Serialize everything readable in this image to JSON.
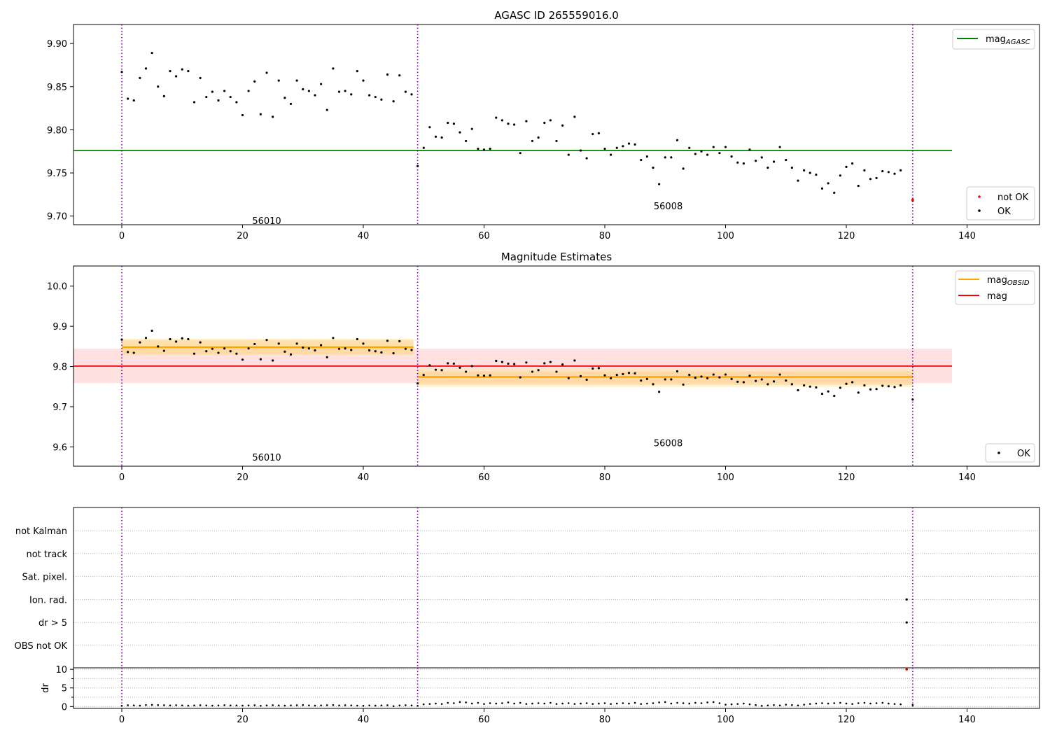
{
  "figure": {
    "suptitle": "AGASC ID 265559016.0"
  },
  "chart_data": [
    {
      "type": "scatter",
      "panel": "top",
      "title": "AGASC ID 265559016.0",
      "xlim": [
        -8,
        152
      ],
      "ylim": [
        9.69,
        9.922
      ],
      "x_ticks": [
        0,
        20,
        40,
        60,
        80,
        100,
        120,
        140
      ],
      "y_ticks": [
        9.7,
        9.75,
        9.8,
        9.85,
        9.9
      ],
      "y_tick_labels": [
        "9.70",
        "9.75",
        "9.80",
        "9.85",
        "9.90"
      ],
      "obsid_boundaries": [
        0,
        49,
        131
      ],
      "obsid_labels": [
        {
          "x": 24,
          "y": 9.695,
          "text": "56010"
        },
        {
          "x": 90.5,
          "y": 9.712,
          "text": "56008"
        }
      ],
      "hlines": [
        {
          "name": "mag_AGASC",
          "value": 9.776,
          "x_range": [
            -8,
            137.5
          ],
          "color": "#008000"
        }
      ],
      "legend_upper": [
        {
          "label": "mag",
          "sub": "AGASC",
          "color": "#008000",
          "kind": "line"
        }
      ],
      "legend_lower": [
        {
          "label": "not OK",
          "color": "#ff0000",
          "kind": "dot"
        },
        {
          "label": "OK",
          "color": "#000000",
          "kind": "dot"
        }
      ],
      "series": [
        {
          "name": "OK",
          "color": "#000000",
          "x": [
            0,
            1,
            2,
            3,
            4,
            5,
            6,
            7,
            8,
            9,
            10,
            11,
            12,
            13,
            14,
            15,
            16,
            17,
            18,
            19,
            20,
            21,
            22,
            23,
            24,
            25,
            26,
            27,
            28,
            29,
            30,
            31,
            32,
            33,
            34,
            35,
            36,
            37,
            38,
            39,
            40,
            41,
            42,
            43,
            44,
            45,
            46,
            47,
            48,
            49,
            50,
            51,
            52,
            53,
            54,
            55,
            56,
            57,
            58,
            59,
            60,
            61,
            62,
            63,
            64,
            65,
            66,
            67,
            68,
            69,
            70,
            71,
            72,
            73,
            74,
            75,
            76,
            77,
            78,
            79,
            80,
            81,
            82,
            83,
            84,
            85,
            86,
            87,
            88,
            89,
            90,
            91,
            92,
            93,
            94,
            95,
            96,
            97,
            98,
            99,
            100,
            101,
            102,
            103,
            104,
            105,
            106,
            107,
            108,
            109,
            110,
            111,
            112,
            113,
            114,
            115,
            116,
            117,
            118,
            119,
            120,
            121,
            122,
            123,
            124,
            125,
            126,
            127,
            128,
            129,
            131
          ],
          "y": [
            9.867,
            9.836,
            9.834,
            9.86,
            9.871,
            9.889,
            9.85,
            9.839,
            9.868,
            9.862,
            9.87,
            9.868,
            9.832,
            9.86,
            9.838,
            9.844,
            9.834,
            9.845,
            9.838,
            9.832,
            9.817,
            9.845,
            9.856,
            9.818,
            9.866,
            9.815,
            9.857,
            9.837,
            9.83,
            9.857,
            9.847,
            9.845,
            9.84,
            9.853,
            9.823,
            9.871,
            9.844,
            9.845,
            9.841,
            9.868,
            9.857,
            9.84,
            9.838,
            9.835,
            9.864,
            9.833,
            9.863,
            9.844,
            9.841,
            9.758,
            9.779,
            9.803,
            9.792,
            9.791,
            9.808,
            9.807,
            9.797,
            9.787,
            9.801,
            9.778,
            9.777,
            9.778,
            9.814,
            9.811,
            9.807,
            9.806,
            9.773,
            9.81,
            9.787,
            9.791,
            9.808,
            9.811,
            9.787,
            9.805,
            9.771,
            9.815,
            9.776,
            9.767,
            9.795,
            9.796,
            9.778,
            9.771,
            9.779,
            9.781,
            9.784,
            9.783,
            9.765,
            9.769,
            9.756,
            9.737,
            9.768,
            9.768,
            9.788,
            9.755,
            9.779,
            9.772,
            9.775,
            9.771,
            9.78,
            9.773,
            9.78,
            9.769,
            9.762,
            9.761,
            9.777,
            9.764,
            9.768,
            9.756,
            9.763,
            9.78,
            9.765,
            9.756,
            9.741,
            9.753,
            9.75,
            9.748,
            9.732,
            9.738,
            9.727,
            9.747,
            9.757,
            9.761,
            9.735,
            9.753,
            9.743,
            9.744,
            9.752,
            9.751,
            9.749,
            9.753,
            9.718
          ]
        },
        {
          "name": "not OK",
          "color": "#ff0000",
          "x": [
            131
          ],
          "y": [
            9.719
          ]
        }
      ]
    },
    {
      "type": "scatter",
      "panel": "middle",
      "title": "Magnitude Estimates",
      "xlim": [
        -8,
        152
      ],
      "ylim": [
        9.552,
        10.05
      ],
      "x_ticks": [
        0,
        20,
        40,
        60,
        80,
        100,
        120,
        140
      ],
      "y_ticks": [
        9.6,
        9.7,
        9.8,
        9.9,
        10.0
      ],
      "y_tick_labels": [
        "9.6",
        "9.7",
        "9.8",
        "9.9",
        "10.0"
      ],
      "obsid_boundaries": [
        0,
        49,
        131
      ],
      "obsid_labels": [
        {
          "x": 24,
          "y": 9.575,
          "text": "56010"
        },
        {
          "x": 90.5,
          "y": 9.61,
          "text": "56008"
        }
      ],
      "mag": {
        "value": 9.801,
        "band": [
          9.759,
          9.844
        ],
        "x_range": [
          -8,
          137.5
        ],
        "color": "#ff0000"
      },
      "mag_obsid": [
        {
          "obsid": "56010",
          "x_range": [
            0,
            48.3
          ],
          "value": 9.848,
          "band_inner": [
            9.83,
            9.866
          ],
          "band_outer": [
            9.827,
            9.869
          ]
        },
        {
          "obsid": "56008",
          "x_range": [
            49,
            131
          ],
          "value": 9.774,
          "band_inner": [
            9.754,
            9.788
          ],
          "band_outer": [
            9.749,
            9.795
          ]
        }
      ],
      "legend_upper": [
        {
          "label": "mag",
          "sub": "OBSID",
          "color": "#ffa500",
          "kind": "line"
        },
        {
          "label": "mag",
          "sub": "",
          "color": "#ff0000",
          "kind": "line"
        }
      ],
      "legend_lower": [
        {
          "label": "OK",
          "color": "#000000",
          "kind": "dot"
        }
      ],
      "series": [
        {
          "name": "OK",
          "color": "#000000",
          "same_as_top_panel": true
        }
      ]
    },
    {
      "type": "scatter",
      "panel": "flags",
      "title": "",
      "xlim": [
        -8,
        152
      ],
      "categories": [
        "not Kalman",
        "not track",
        "Sat. pixel.",
        "Ion. rad.",
        "dr > 5",
        "OBS not OK"
      ],
      "obsid_boundaries": [
        0,
        49,
        131
      ],
      "series": [
        {
          "name": "flagged",
          "color": "#000000",
          "points": [
            {
              "x": 130,
              "category": "Ion. rad."
            },
            {
              "x": 130,
              "category": "dr > 5"
            }
          ]
        }
      ]
    },
    {
      "type": "scatter",
      "panel": "dr",
      "title": "",
      "ylabel": "dr",
      "xlim": [
        -8,
        152
      ],
      "ylim": [
        -0.5,
        10.4
      ],
      "x_ticks": [
        0,
        20,
        40,
        60,
        80,
        100,
        120,
        140
      ],
      "y_ticks": [
        0,
        5,
        10
      ],
      "y_tick_labels": [
        "0",
        "5",
        "10"
      ],
      "obsid_boundaries": [
        0,
        49,
        131
      ],
      "series": [
        {
          "name": "OK",
          "color": "#000000",
          "x": [
            0,
            1,
            2,
            3,
            4,
            5,
            6,
            7,
            8,
            9,
            10,
            11,
            12,
            13,
            14,
            15,
            16,
            17,
            18,
            19,
            20,
            21,
            22,
            23,
            24,
            25,
            26,
            27,
            28,
            29,
            30,
            31,
            32,
            33,
            34,
            35,
            36,
            37,
            38,
            39,
            40,
            41,
            42,
            43,
            44,
            45,
            46,
            47,
            48,
            49,
            50,
            51,
            52,
            53,
            54,
            55,
            56,
            57,
            58,
            59,
            60,
            61,
            62,
            63,
            64,
            65,
            66,
            67,
            68,
            69,
            70,
            71,
            72,
            73,
            74,
            75,
            76,
            77,
            78,
            79,
            80,
            81,
            82,
            83,
            84,
            85,
            86,
            87,
            88,
            89,
            90,
            91,
            92,
            93,
            94,
            95,
            96,
            97,
            98,
            99,
            100,
            101,
            102,
            103,
            104,
            105,
            106,
            107,
            108,
            109,
            110,
            111,
            112,
            113,
            114,
            115,
            116,
            117,
            118,
            119,
            120,
            121,
            122,
            123,
            124,
            125,
            126,
            127,
            128,
            129,
            131
          ],
          "y": [
            0.2,
            0.35,
            0.3,
            0.25,
            0.4,
            0.45,
            0.4,
            0.35,
            0.3,
            0.35,
            0.3,
            0.25,
            0.3,
            0.35,
            0.3,
            0.25,
            0.3,
            0.35,
            0.3,
            0.3,
            0.25,
            0.3,
            0.35,
            0.2,
            0.3,
            0.35,
            0.3,
            0.25,
            0.3,
            0.35,
            0.4,
            0.3,
            0.25,
            0.3,
            0.35,
            0.4,
            0.3,
            0.35,
            0.3,
            0.25,
            0.2,
            0.3,
            0.25,
            0.3,
            0.35,
            0.1,
            0.3,
            0.35,
            0.3,
            0.2,
            0.6,
            0.7,
            0.8,
            0.7,
            1.0,
            0.9,
            1.2,
            1.1,
            0.8,
            1.0,
            0.7,
            0.9,
            0.8,
            0.9,
            1.1,
            0.8,
            1.0,
            0.7,
            0.8,
            0.9,
            0.8,
            1.0,
            0.7,
            0.8,
            0.9,
            0.7,
            0.8,
            0.9,
            0.7,
            0.8,
            0.9,
            0.7,
            0.8,
            0.9,
            0.8,
            1.0,
            0.7,
            0.8,
            0.9,
            1.1,
            1.2,
            0.8,
            1.0,
            0.9,
            0.8,
            1.0,
            0.9,
            1.1,
            1.2,
            0.9,
            0.5,
            0.6,
            0.7,
            0.8,
            0.6,
            0.4,
            0.2,
            0.3,
            0.4,
            0.3,
            0.5,
            0.4,
            0.3,
            0.5,
            0.7,
            0.8,
            0.9,
            0.8,
            0.9,
            1.0,
            0.8,
            0.7,
            0.9,
            1.0,
            0.8,
            0.9,
            1.0,
            0.8,
            0.7,
            0.6,
            0.4
          ]
        },
        {
          "name": "not OK",
          "color": "#ff0000",
          "x": [
            130
          ],
          "y": [
            10.0
          ]
        }
      ]
    }
  ]
}
